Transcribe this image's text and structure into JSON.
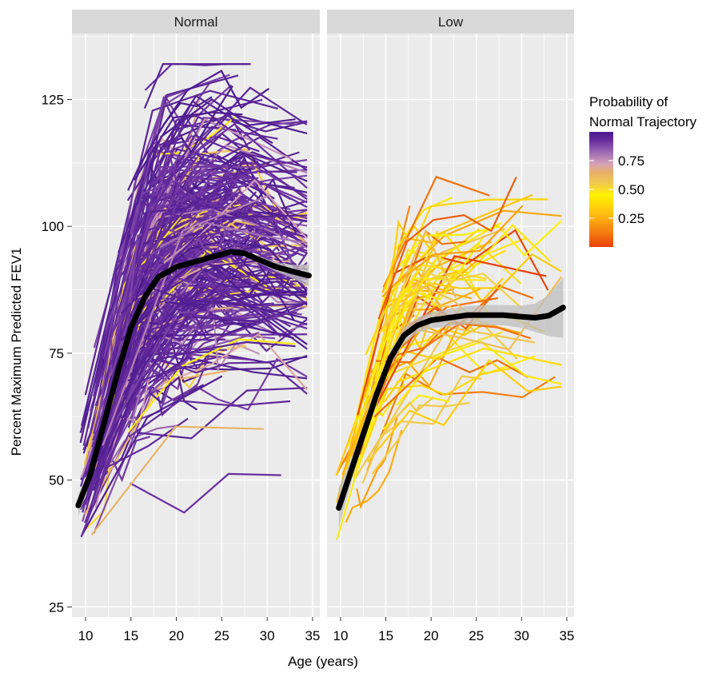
{
  "chart_data": {
    "type": "line",
    "xlabel": "Age (years)",
    "ylabel": "Percent Maximum Predicted FEV1",
    "x_ticks": [
      10,
      15,
      20,
      25,
      30,
      35
    ],
    "y_ticks": [
      25,
      50,
      75,
      100,
      125
    ],
    "xlim": [
      8.5,
      35.8
    ],
    "ylim": [
      23,
      138
    ],
    "grid": true,
    "panel_background": "#ebebeb",
    "strip_background": "#d9d9d9",
    "legend": {
      "title_lines": [
        "Probability of",
        "Normal Trajectory"
      ],
      "ticks": [
        0.25,
        0.5,
        0.75
      ],
      "tick_labels": [
        "0.25",
        "0.50",
        "0.75"
      ],
      "range": [
        0,
        1
      ],
      "placement": "right",
      "colors": [
        "#e8400a",
        "#f47a10",
        "#ffc20e",
        "#fff200",
        "#f2c94c",
        "#e7b06a",
        "#d5a3b5",
        "#a06db4",
        "#6a2fa0",
        "#4b1a8e"
      ]
    },
    "panels": [
      {
        "name": "Normal",
        "group_count": 420,
        "prob_range": [
          0.3,
          1.0
        ],
        "smooth": {
          "x": [
            9.2,
            10.5,
            12,
            13.5,
            15,
            16.5,
            18,
            20,
            22,
            24,
            26,
            27.5,
            29,
            31,
            33,
            34.6
          ],
          "y": [
            45,
            51,
            61,
            71,
            80,
            86,
            90,
            92,
            93,
            94,
            95,
            94.7,
            93.5,
            92,
            91,
            90.3
          ],
          "band_halfwidth": [
            2.2,
            1.4,
            0.9,
            0.7,
            0.6,
            0.5,
            0.5,
            0.5,
            0.5,
            0.5,
            0.5,
            0.5,
            0.7,
            0.9,
            1.4,
            2.2
          ],
          "color": "#000000"
        }
      },
      {
        "name": "Low",
        "group_count": 75,
        "prob_range": [
          0.0,
          0.5
        ],
        "smooth": {
          "x": [
            9.8,
            11,
            12.5,
            14,
            15.5,
            17,
            18.5,
            20,
            22,
            24,
            26,
            28,
            30,
            31.5,
            33,
            34.6
          ],
          "y": [
            44.5,
            51,
            59,
            67,
            74,
            78.5,
            80.5,
            81.5,
            82,
            82.5,
            82.5,
            82.5,
            82.2,
            82,
            82.4,
            84
          ],
          "band_halfwidth": [
            4,
            2.5,
            1.8,
            1.5,
            1.5,
            1.5,
            1.5,
            1.6,
            1.7,
            1.8,
            2,
            2,
            2.2,
            2.8,
            4,
            6
          ],
          "color": "#000000"
        }
      }
    ]
  }
}
